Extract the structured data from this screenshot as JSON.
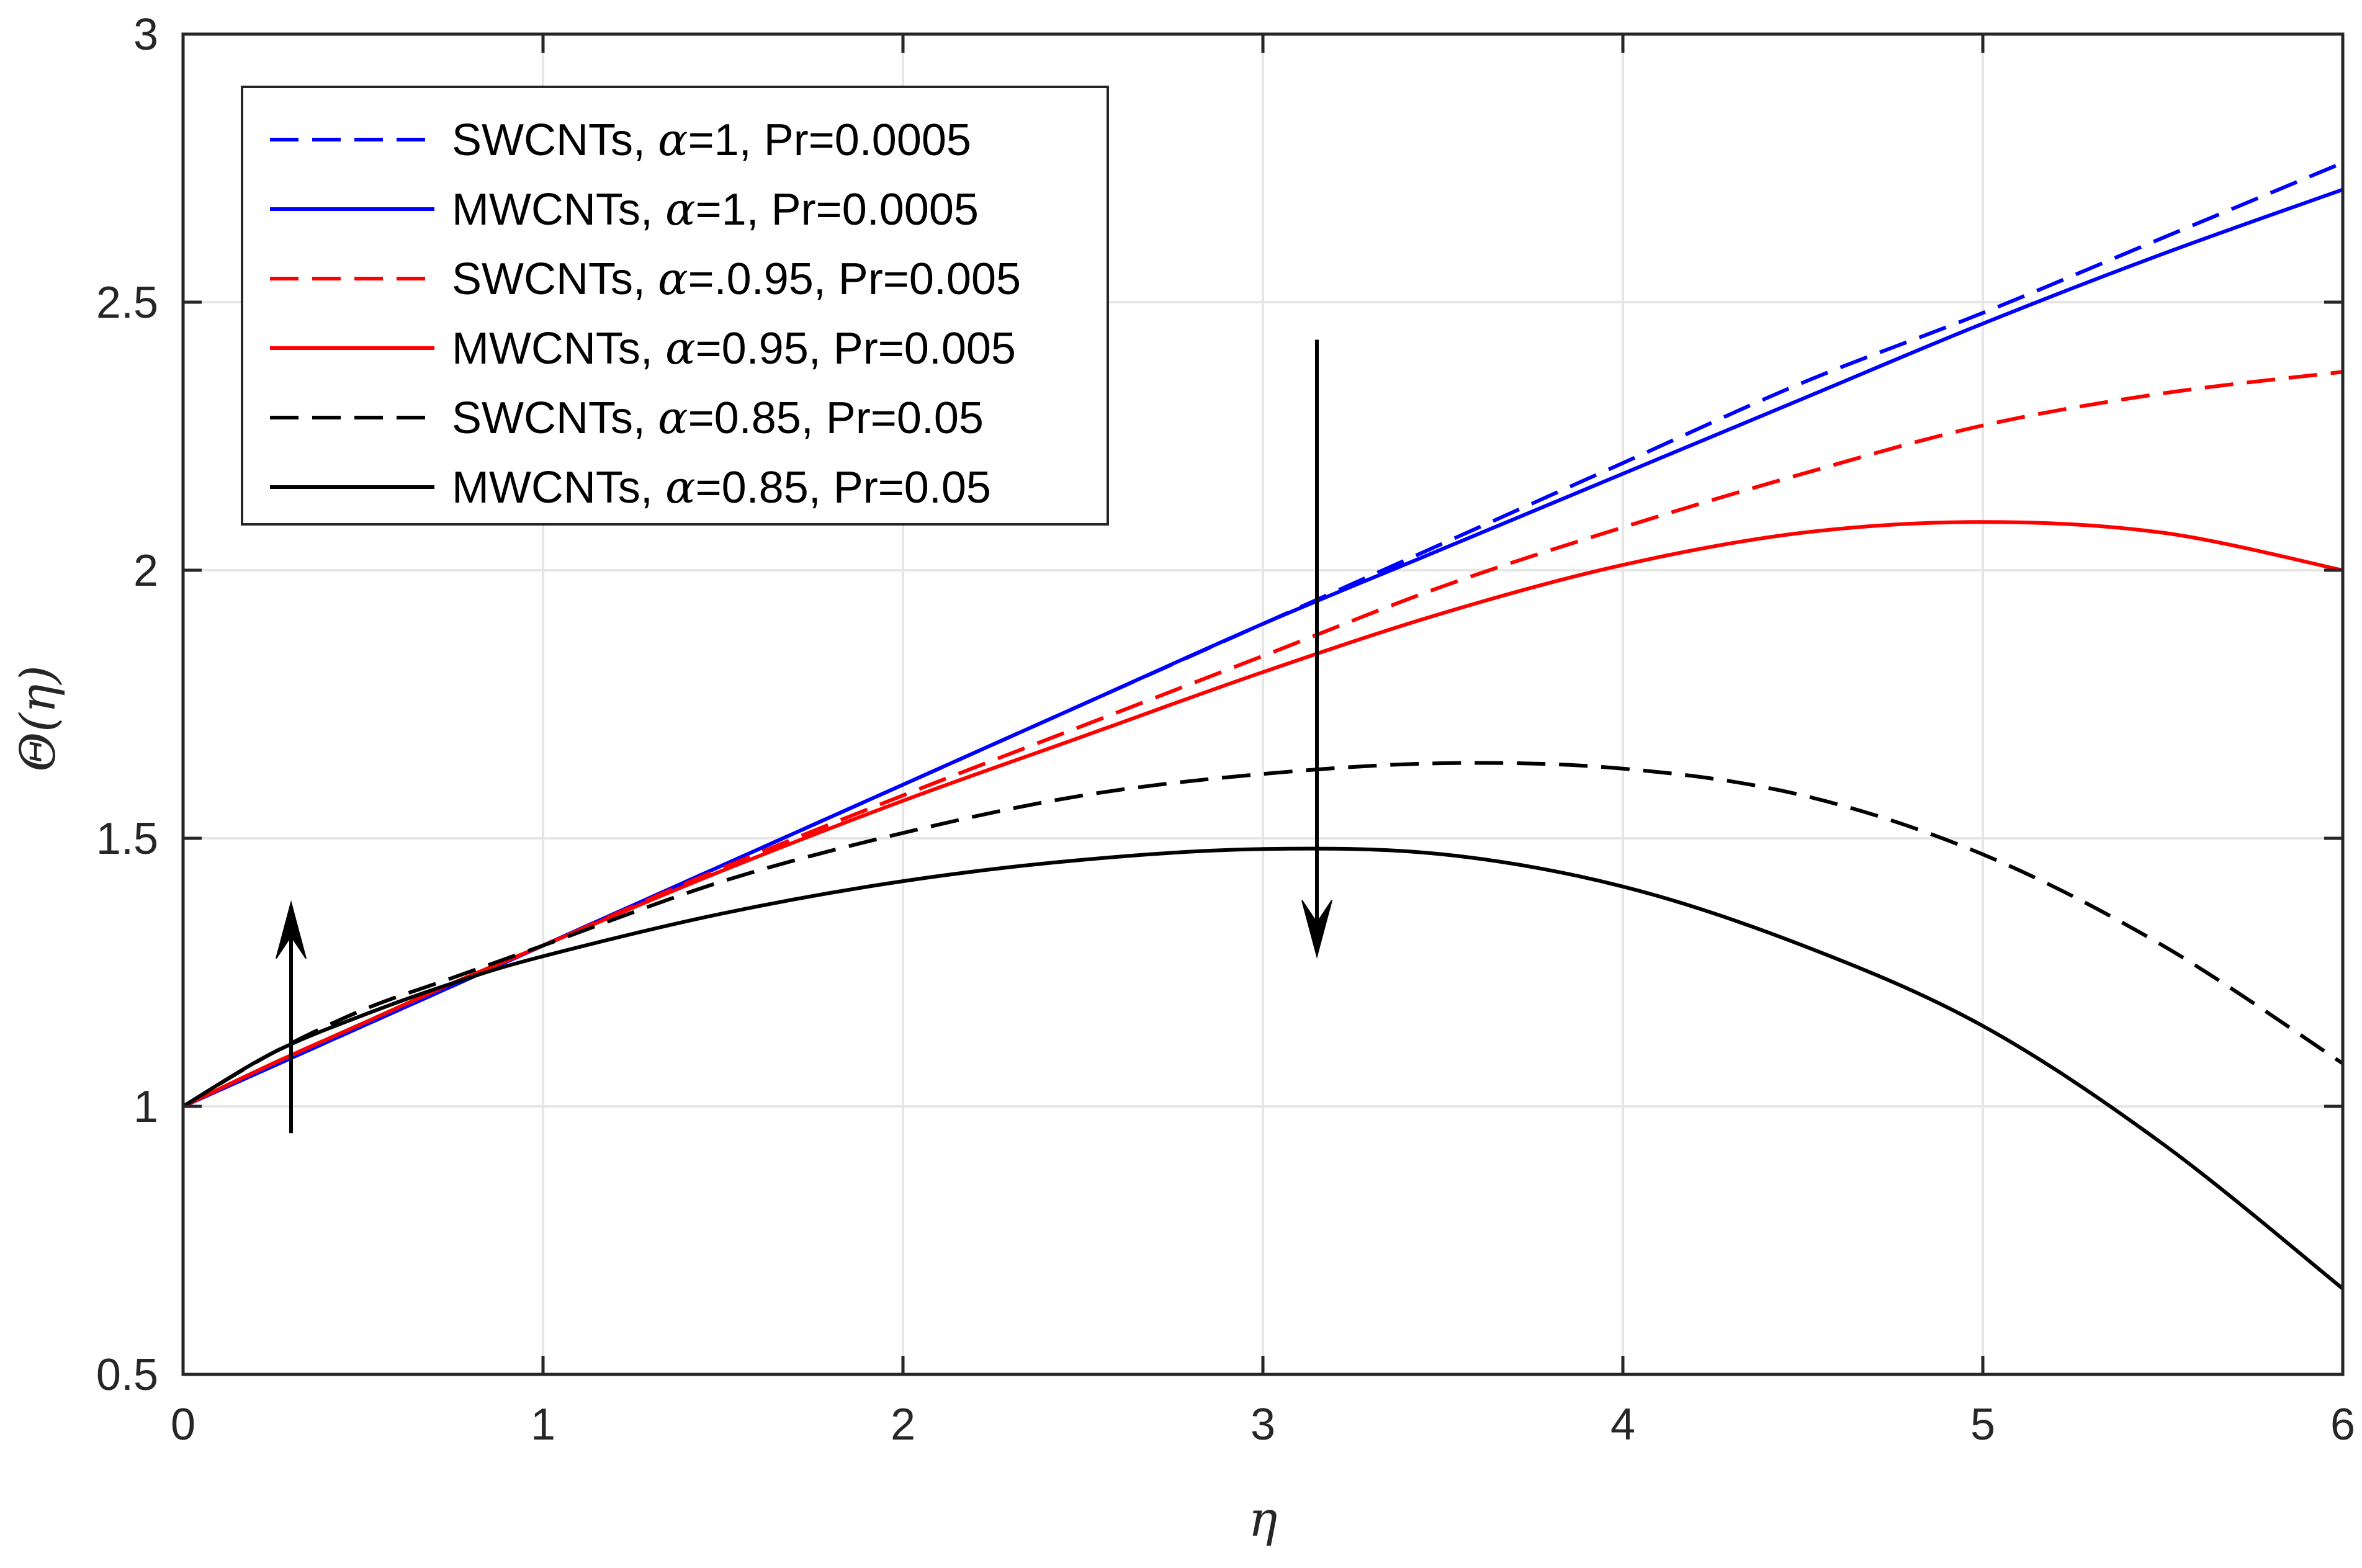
{
  "chart_data": {
    "type": "line",
    "title": "",
    "xlabel": "η",
    "ylabel": "Θ(η)",
    "xlim": [
      0,
      6
    ],
    "ylim": [
      0.5,
      3
    ],
    "xticks": [
      0,
      1,
      2,
      3,
      4,
      5,
      6
    ],
    "xtick_labels": [
      "0",
      "1",
      "2",
      "3",
      "4",
      "5",
      "6"
    ],
    "yticks": [
      0.5,
      1,
      1.5,
      2,
      2.5,
      3
    ],
    "ytick_labels": [
      "0.5",
      "1",
      "1.5",
      "2",
      "2.5",
      "3"
    ],
    "grid": true,
    "legend_position": "top-left",
    "x": [
      0,
      0.25,
      0.5,
      0.75,
      1,
      1.5,
      2,
      2.5,
      3,
      3.5,
      4,
      4.5,
      5,
      5.5,
      6
    ],
    "series": [
      {
        "name": "SWCNTs, α=1, Pr=0.0005",
        "legend_prefix": "SWCNTs, ",
        "legend_symbol": "α",
        "legend_suffix": "=1, Pr=0.0005",
        "color": "#0000ff",
        "dashed": true,
        "values": [
          1.0,
          1.075,
          1.15,
          1.225,
          1.3,
          1.45,
          1.6,
          1.75,
          1.9,
          2.05,
          2.2,
          2.35,
          2.48,
          2.62,
          2.76
        ]
      },
      {
        "name": "MWCNTs, α=1, Pr=0.0005",
        "legend_prefix": "MWCNTs, ",
        "legend_symbol": "α",
        "legend_suffix": "=1, Pr=0.0005",
        "color": "#0000ff",
        "dashed": false,
        "values": [
          1.0,
          1.075,
          1.15,
          1.225,
          1.3,
          1.45,
          1.6,
          1.75,
          1.9,
          2.04,
          2.18,
          2.32,
          2.46,
          2.59,
          2.71
        ]
      },
      {
        "name": "SWCNTs, α=.0.95, Pr=0.005",
        "legend_prefix": "SWCNTs, ",
        "legend_symbol": "α",
        "legend_suffix": "=.0.95, Pr=0.005",
        "color": "#ff0000",
        "dashed": true,
        "values": [
          1.0,
          1.08,
          1.155,
          1.23,
          1.3,
          1.445,
          1.58,
          1.71,
          1.84,
          1.97,
          2.08,
          2.18,
          2.27,
          2.33,
          2.37
        ]
      },
      {
        "name": "MWCNTs, α=0.95, Pr=0.005",
        "legend_prefix": "MWCNTs, ",
        "legend_symbol": "α",
        "legend_suffix": "=0.95, Pr=0.005",
        "color": "#ff0000",
        "dashed": false,
        "values": [
          1.0,
          1.08,
          1.155,
          1.23,
          1.3,
          1.44,
          1.57,
          1.69,
          1.81,
          1.92,
          2.01,
          2.07,
          2.09,
          2.07,
          2.0
        ]
      },
      {
        "name": "SWCNTs, α=0.85, Pr=0.05",
        "legend_prefix": "SWCNTs, ",
        "legend_symbol": "α",
        "legend_suffix": "=0.85, Pr=0.05",
        "color": "#000000",
        "dashed": true,
        "values": [
          1.0,
          1.1,
          1.18,
          1.24,
          1.3,
          1.42,
          1.51,
          1.58,
          1.62,
          1.64,
          1.63,
          1.58,
          1.47,
          1.3,
          1.08
        ]
      },
      {
        "name": "MWCNTs, α=0.85, Pr=0.05",
        "legend_prefix": "MWCNTs, ",
        "legend_symbol": "α",
        "legend_suffix": "=0.85, Pr=0.05",
        "color": "#000000",
        "dashed": false,
        "values": [
          1.0,
          1.1,
          1.17,
          1.23,
          1.28,
          1.36,
          1.42,
          1.46,
          1.48,
          1.47,
          1.41,
          1.3,
          1.15,
          0.93,
          0.66
        ]
      }
    ],
    "annotations": [
      {
        "type": "arrow",
        "direction": "up",
        "x": 0.3,
        "y_from": 0.95,
        "y_to": 1.38
      },
      {
        "type": "arrow",
        "direction": "down",
        "x": 3.15,
        "y_from": 2.43,
        "y_to": 1.28
      }
    ]
  }
}
